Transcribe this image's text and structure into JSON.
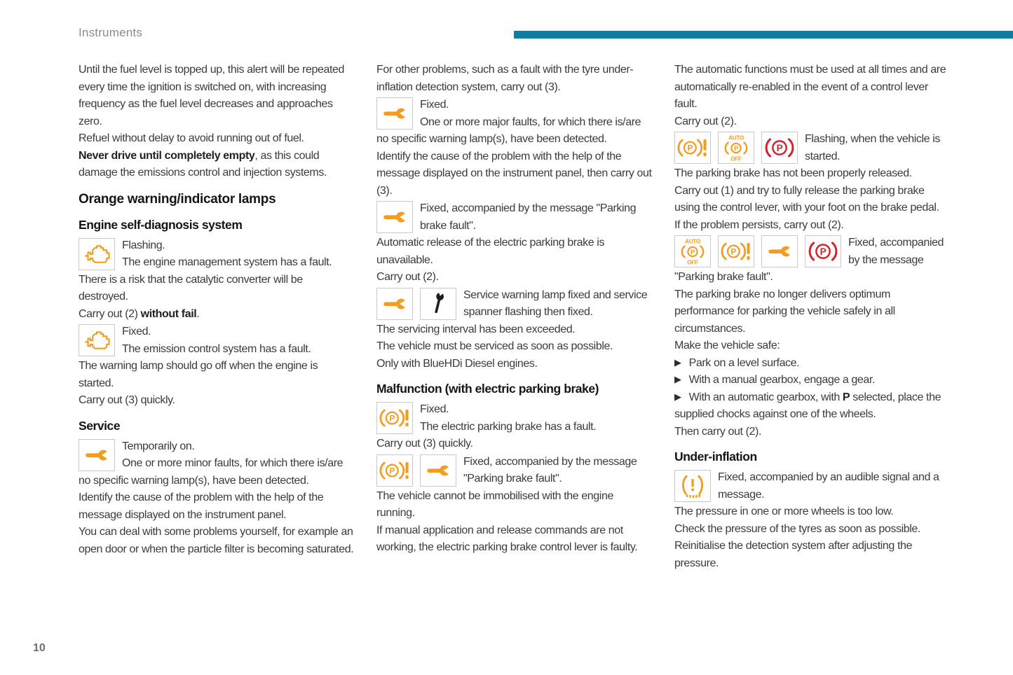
{
  "page": {
    "header": "Instruments",
    "page_number": "10",
    "colors": {
      "accent": "#107d9f",
      "orange": "#f39c1f",
      "red": "#d2232a",
      "black_icon": "#1d1d1d"
    }
  },
  "icons": {
    "engine": "engine-warning-lamp",
    "wrench": "service-wrench-lamp",
    "spanner-black": "service-spanner-indicator",
    "parking-fault": "parking-brake-fault-lamp",
    "auto-parking-off": "auto-parking-brake-off-lamp",
    "parking-red": "parking-brake-lamp",
    "under-inflation": "under-inflation-lamp"
  },
  "columns": [
    {
      "blocks": [
        {
          "type": "p",
          "text": "Until the fuel level is topped up, this alert will be repeated every time the ignition is switched on, with increasing frequency as the fuel level decreases and approaches zero."
        },
        {
          "type": "p",
          "text": "Refuel without delay to avoid running out of fuel."
        },
        {
          "type": "p",
          "text": "**Never drive until completely empty**, as this could damage the emissions control and injection systems."
        },
        {
          "type": "h2",
          "text": "Orange warning/indicator lamps"
        },
        {
          "type": "h3",
          "text": "Engine self-diagnosis system"
        },
        {
          "type": "entry",
          "icons": [
            "engine"
          ],
          "text": "Flashing.\nThe engine management system has a fault."
        },
        {
          "type": "p",
          "text": "There is a risk that the catalytic converter will be destroyed."
        },
        {
          "type": "p",
          "text": "Carry out (2) **without fail**."
        },
        {
          "type": "entry",
          "icons": [
            "engine"
          ],
          "text": "Fixed.\nThe emission control system has a fault."
        },
        {
          "type": "p",
          "text": "The warning lamp should go off when the engine is started."
        },
        {
          "type": "p",
          "text": "Carry out (3) quickly."
        },
        {
          "type": "h3",
          "text": "Service"
        },
        {
          "type": "entry",
          "icons": [
            "wrench"
          ],
          "text": "Temporarily on.\nOne or more minor faults, for which there is/are no specific warning lamp(s), have been detected."
        },
        {
          "type": "p",
          "text": "Identify the cause of the problem with the help of the message displayed on the instrument panel."
        },
        {
          "type": "p",
          "text": "You can deal with some problems yourself, for example an open door or when the particle filter is becoming saturated."
        }
      ]
    },
    {
      "blocks": [
        {
          "type": "p",
          "text": "For other problems, such as a fault with the tyre under-inflation detection system, carry out (3)."
        },
        {
          "type": "entry",
          "icons": [
            "wrench"
          ],
          "text": "Fixed.\nOne or more major faults, for which there is/are no specific warning lamp(s), have been detected."
        },
        {
          "type": "p",
          "text": "Identify the cause of the problem with the help of the message displayed on the instrument panel, then carry out (3)."
        },
        {
          "type": "entry",
          "icons": [
            "wrench"
          ],
          "text": "Fixed, accompanied by the message \"Parking brake fault\"."
        },
        {
          "type": "p",
          "text": "Automatic release of the electric parking brake is unavailable."
        },
        {
          "type": "p",
          "text": "Carry out (2)."
        },
        {
          "type": "entry",
          "icons": [
            "wrench",
            "spanner-black"
          ],
          "text": "Service warning lamp fixed and service spanner flashing then fixed."
        },
        {
          "type": "p",
          "text": "The servicing interval has been exceeded."
        },
        {
          "type": "p",
          "text": "The vehicle must be serviced as soon as possible."
        },
        {
          "type": "p",
          "text": "Only with BlueHDi Diesel engines."
        },
        {
          "type": "h3",
          "text": "Malfunction (with electric parking brake)"
        },
        {
          "type": "entry",
          "icons": [
            "parking-fault"
          ],
          "text": "Fixed.\nThe electric parking brake has a fault."
        },
        {
          "type": "p",
          "text": "Carry out (3) quickly."
        },
        {
          "type": "entry",
          "icons": [
            "parking-fault",
            "wrench"
          ],
          "text": "Fixed, accompanied by the message \"Parking brake fault\"."
        },
        {
          "type": "p",
          "text": "The vehicle cannot be immobilised with the engine running."
        },
        {
          "type": "p",
          "text": "If manual application and release commands are not working, the electric parking brake control lever is faulty."
        }
      ]
    },
    {
      "blocks": [
        {
          "type": "p",
          "text": "The automatic functions must be used at all times and are automatically re-enabled in the event of a control lever fault."
        },
        {
          "type": "p",
          "text": "Carry out (2)."
        },
        {
          "type": "entry",
          "icons": [
            "parking-fault",
            "auto-parking-off",
            "parking-red"
          ],
          "text": "Flashing, when the vehicle is started."
        },
        {
          "type": "p",
          "text": "The parking brake has not been properly released."
        },
        {
          "type": "p",
          "text": "Carry out (1) and try to fully release the parking brake using the control lever, with your foot on the brake pedal."
        },
        {
          "type": "p",
          "text": "If the problem persists, carry out (2)."
        },
        {
          "type": "entry",
          "icons": [
            "auto-parking-off",
            "parking-fault",
            "wrench",
            "parking-red"
          ],
          "text": "Fixed, accompanied by the message \"Parking brake fault\"."
        },
        {
          "type": "p",
          "text": "The parking brake no longer delivers optimum performance for parking the vehicle safely in all circumstances."
        },
        {
          "type": "p",
          "text": "Make the vehicle safe:"
        },
        {
          "type": "bullet",
          "text": "Park on a level surface."
        },
        {
          "type": "bullet",
          "text": "With a manual gearbox, engage a gear."
        },
        {
          "type": "bullet",
          "text": "With an automatic gearbox, with **P** selected, place the supplied chocks against one of the wheels."
        },
        {
          "type": "p",
          "text": "Then carry out (2)."
        },
        {
          "type": "h3",
          "text": "Under-inflation"
        },
        {
          "type": "entry",
          "icons": [
            "under-inflation"
          ],
          "text": "Fixed, accompanied by an audible signal and a message."
        },
        {
          "type": "p",
          "text": "The pressure in one or more wheels is too low."
        },
        {
          "type": "p",
          "text": "Check the pressure of the tyres as soon as possible."
        },
        {
          "type": "p",
          "text": "Reinitialise the detection system after adjusting the pressure."
        }
      ]
    }
  ]
}
